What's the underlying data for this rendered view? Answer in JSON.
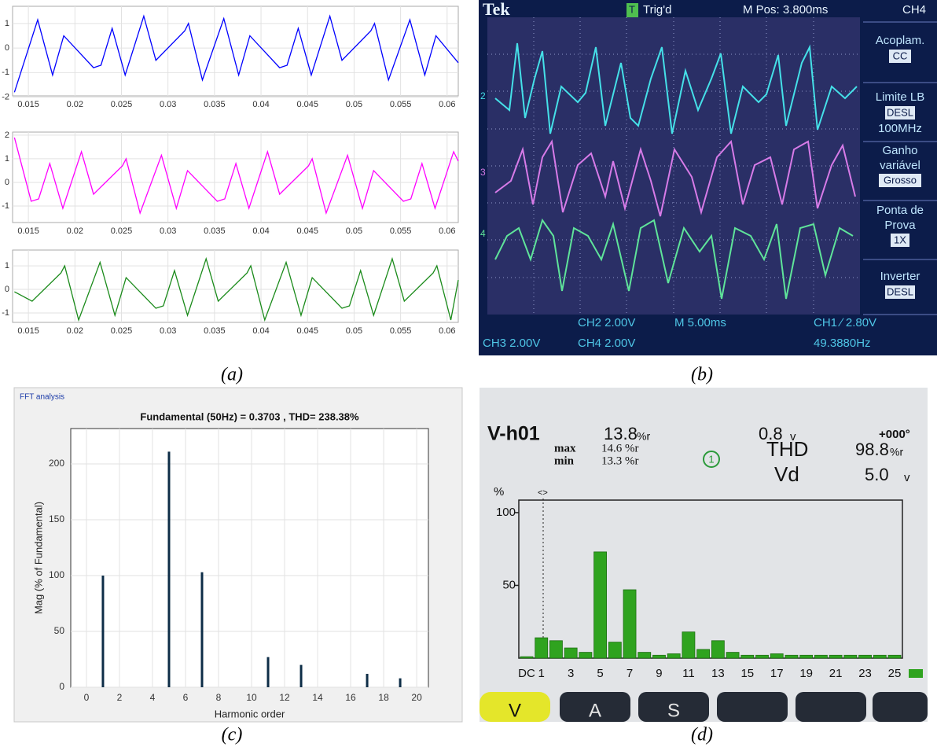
{
  "chart_data": [
    {
      "type": "line",
      "x": [
        0.0135,
        0.016,
        0.0176,
        0.0188,
        0.022,
        0.0228,
        0.024,
        0.0254,
        0.0274,
        0.0287,
        0.0318,
        0.0322,
        0.0337,
        0.036,
        0.0376,
        0.0388,
        0.042,
        0.0428,
        0.044,
        0.0454,
        0.0474,
        0.0487,
        0.0518,
        0.0522,
        0.0537,
        0.056,
        0.0576,
        0.0588,
        0.0612
      ],
      "series": [
        {
          "color": "#0000ff",
          "values": [
            -1.8,
            1.15,
            -1.1,
            0.5,
            -0.8,
            -0.7,
            0.8,
            -1.1,
            1.3,
            -0.5,
            0.7,
            1.0,
            -1.3,
            1.2,
            -1.1,
            0.5,
            -0.8,
            -0.7,
            0.8,
            -1.1,
            1.3,
            -0.5,
            0.7,
            1.0,
            -1.3,
            1.15,
            -1.1,
            0.5,
            -0.6
          ]
        }
      ],
      "xlim": [
        0.0133,
        0.0612
      ],
      "xticks": [
        0.015,
        0.02,
        0.025,
        0.03,
        0.035,
        0.04,
        0.045,
        0.05,
        0.055,
        0.06
      ],
      "ylim": [
        -1.95,
        1.7
      ],
      "yticks": [
        -2,
        -1,
        0,
        1
      ],
      "grid": true
    },
    {
      "type": "line",
      "x": [
        0.0135,
        0.0153,
        0.0161,
        0.0173,
        0.0187,
        0.0207,
        0.022,
        0.0251,
        0.0255,
        0.027,
        0.0293,
        0.0309,
        0.0321,
        0.0353,
        0.0361,
        0.0373,
        0.0387,
        0.0407,
        0.042,
        0.0451,
        0.0455,
        0.047,
        0.0493,
        0.0509,
        0.0521,
        0.0553,
        0.0561,
        0.0573,
        0.0587,
        0.0607,
        0.0612
      ],
      "series": [
        {
          "color": "#ff00ff",
          "values": [
            1.9,
            -0.8,
            -0.7,
            0.8,
            -1.1,
            1.3,
            -0.5,
            0.7,
            1.0,
            -1.3,
            1.15,
            -1.1,
            0.5,
            -0.8,
            -0.7,
            0.8,
            -1.1,
            1.3,
            -0.5,
            0.7,
            1.0,
            -1.3,
            1.15,
            -1.1,
            0.5,
            -0.8,
            -0.7,
            0.8,
            -1.1,
            1.3,
            0.9
          ]
        }
      ],
      "xlim": [
        0.0133,
        0.0612
      ],
      "xticks": [
        0.015,
        0.02,
        0.025,
        0.03,
        0.035,
        0.04,
        0.045,
        0.05,
        0.055,
        0.06
      ],
      "ylim": [
        -1.7,
        2.13
      ],
      "yticks": [
        -1,
        0,
        1,
        2
      ],
      "grid": true
    },
    {
      "type": "line",
      "x": [
        0.0135,
        0.0154,
        0.0185,
        0.0189,
        0.0204,
        0.0227,
        0.0243,
        0.0255,
        0.0287,
        0.0295,
        0.0307,
        0.0321,
        0.0341,
        0.0354,
        0.0385,
        0.0389,
        0.0404,
        0.0427,
        0.0443,
        0.0455,
        0.0487,
        0.0495,
        0.0507,
        0.0521,
        0.0541,
        0.0554,
        0.0585,
        0.0589,
        0.0604,
        0.0612
      ],
      "series": [
        {
          "color": "#1a8a1a",
          "values": [
            -0.1,
            -0.5,
            0.7,
            1.0,
            -1.3,
            1.15,
            -1.1,
            0.5,
            -0.8,
            -0.7,
            0.8,
            -1.1,
            1.3,
            -0.5,
            0.7,
            1.0,
            -1.3,
            1.15,
            -1.1,
            0.5,
            -0.8,
            -0.7,
            0.8,
            -1.1,
            1.3,
            -0.5,
            0.7,
            1.0,
            -1.3,
            0.4
          ]
        }
      ],
      "xlim": [
        0.0133,
        0.0612
      ],
      "xticks": [
        0.015,
        0.02,
        0.025,
        0.03,
        0.035,
        0.04,
        0.045,
        0.05,
        0.055,
        0.06
      ],
      "ylim": [
        -1.4,
        1.67
      ],
      "yticks": [
        -1,
        0,
        1
      ],
      "grid": true
    },
    {
      "type": "bar",
      "panel_label": "FFT analysis",
      "title": "Fundamental (50Hz) = 0.3703 , THD= 238.38%",
      "xlabel": "Harmonic order",
      "ylabel": "Mag (% of Fundamental)",
      "x": [
        1,
        5,
        7,
        11,
        13,
        17,
        19
      ],
      "values": [
        100,
        211,
        103,
        27,
        20,
        12,
        8
      ],
      "color": "#0d2d47",
      "xlim": [
        -0.95,
        20.71
      ],
      "xticks": [
        0,
        2,
        4,
        6,
        8,
        10,
        12,
        14,
        16,
        18,
        20
      ],
      "ylim": [
        0,
        231.7
      ],
      "yticks": [
        0,
        50,
        100,
        150,
        200
      ],
      "grid": true
    },
    {
      "type": "bar",
      "y_unit": "%",
      "categories": [
        "DC",
        "1",
        null,
        "3",
        null,
        "5",
        null,
        "7",
        null,
        "9",
        null,
        "11",
        null,
        "13",
        null,
        "15",
        null,
        "17",
        null,
        "19",
        null,
        "21",
        null,
        "23",
        null,
        "25"
      ],
      "values": [
        1,
        14,
        12,
        7,
        4,
        73,
        11,
        47,
        4,
        2,
        3,
        18,
        6,
        12,
        4,
        2,
        2,
        3,
        2,
        2,
        2,
        2,
        2,
        2,
        2,
        2
      ],
      "color": "#2fa31f",
      "ylim": [
        0,
        108.6
      ],
      "yticks": [
        50,
        100
      ],
      "grid": false
    }
  ],
  "captions": [
    "(a)",
    "(b)",
    "(c)",
    "(d)"
  ],
  "scope": {
    "brand": "Tek",
    "trigger_marker": "T",
    "trigger": "Trig'd",
    "position": "M Pos: 3.800ms",
    "channel": "CH4",
    "menu": {
      "coupling_label": "Acoplam.",
      "coupling": "CC",
      "bandwidth_label": "Limite LB",
      "bandwidth": "DESL",
      "bandwidth_limit": "100MHz",
      "gain_label": [
        "Ganho",
        "variável"
      ],
      "gain": "Grosso",
      "probe_label": [
        "Ponta de",
        "Prova"
      ],
      "probe": "1X",
      "invert_label": "Inverter",
      "invert": "DESL"
    },
    "channel_markers": [
      "2",
      "3",
      "4"
    ],
    "ch2": "CH2 2.00V",
    "timebase": "M 5.00ms",
    "trigger_level": "CH1 ∕ 2.80V",
    "ch3": "CH3 2.00V",
    "ch4": "CH4 2.00V",
    "frequency": "49.3880Hz"
  },
  "analyzer": {
    "harmonic": "V-h01",
    "reading": "13.8",
    "reading_unit": "%r",
    "volts": "0.8",
    "volts_unit": "v",
    "phase": "+000°",
    "max_label": "max",
    "max": "14.6 %r",
    "min_label": "min",
    "min": "13.3 %r",
    "phase_indicator": "1",
    "thd_label": "THD",
    "thd": "98.8",
    "thd_unit": "%r",
    "vd_label": "Vd",
    "vd": "5.0",
    "vd_unit": "v",
    "cursor": "<>",
    "buttons": [
      "V",
      "A",
      "S"
    ]
  }
}
